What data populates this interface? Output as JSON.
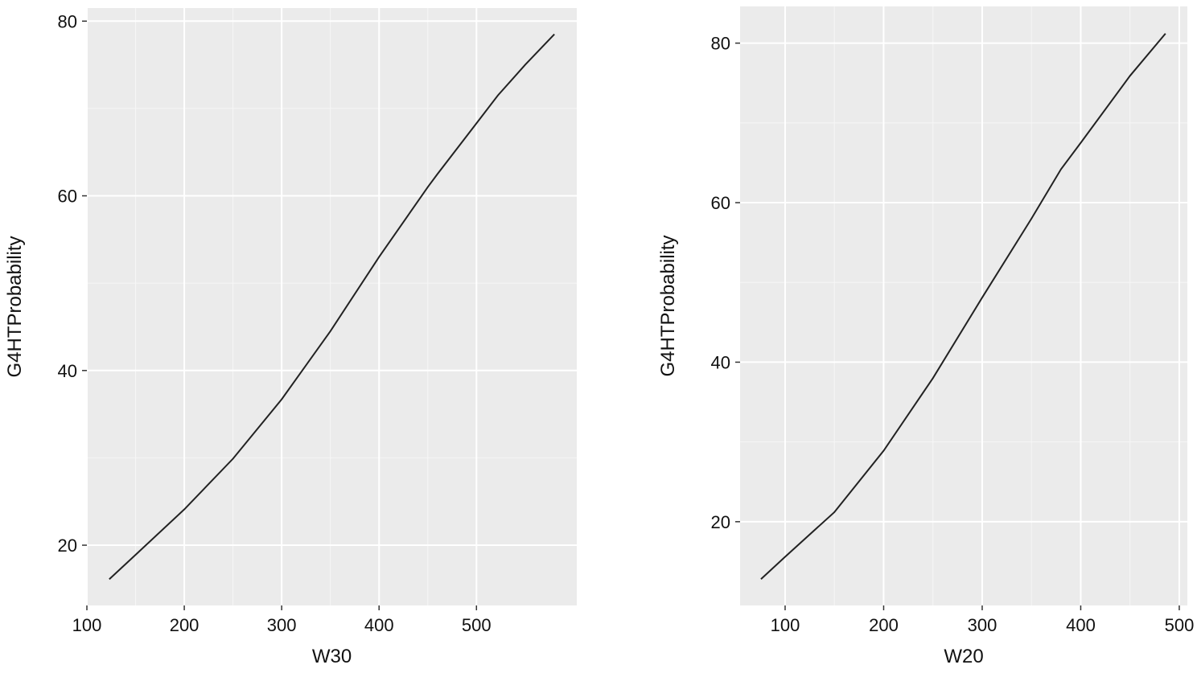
{
  "chart_data": [
    {
      "type": "line",
      "xlabel": "W30",
      "ylabel": "G4HTProbability",
      "x": [
        123,
        150,
        200,
        250,
        300,
        350,
        400,
        450,
        460,
        500,
        522,
        550,
        580
      ],
      "series": [
        {
          "color": "#222222",
          "values": [
            16.1,
            18.9,
            24.1,
            29.9,
            36.7,
            44.5,
            53,
            61,
            62.5,
            68.3,
            71.5,
            75,
            78.5
          ]
        }
      ],
      "xlim": [
        100,
        603
      ],
      "xticks": [
        100,
        200,
        300,
        400,
        500
      ],
      "ylim": [
        13.1,
        81.5
      ],
      "yticks": [
        20,
        40,
        60,
        80
      ],
      "grid": true
    },
    {
      "type": "line",
      "xlabel": "W20",
      "ylabel": "G4HTProbability",
      "x": [
        75.5,
        100,
        150,
        200,
        250,
        300,
        350,
        380,
        400,
        450,
        486
      ],
      "series": [
        {
          "color": "#222222",
          "values": [
            12.8,
            15.6,
            21.2,
            28.9,
            38,
            48.1,
            58,
            64.2,
            67.5,
            75.9,
            81.2
          ]
        }
      ],
      "xlim": [
        54.3,
        508.2
      ],
      "xticks": [
        100,
        200,
        300,
        400,
        500
      ],
      "ylim": [
        9.5,
        84.6
      ],
      "yticks": [
        20,
        40,
        60,
        80
      ],
      "grid": true
    }
  ]
}
